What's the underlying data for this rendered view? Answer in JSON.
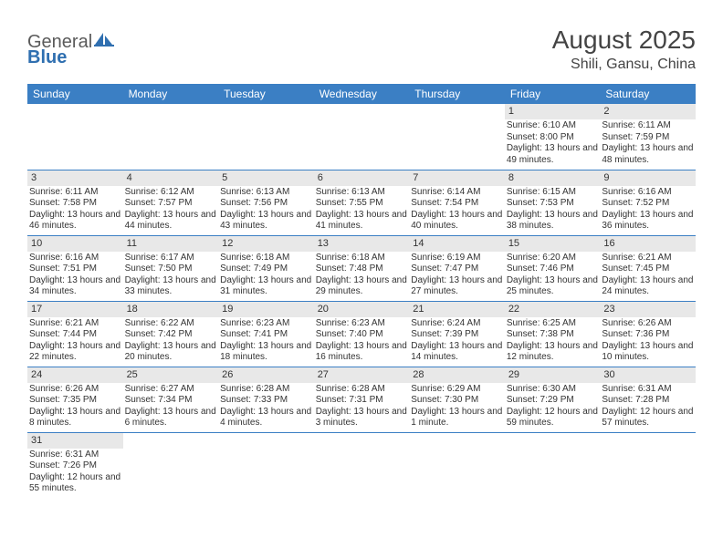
{
  "logo": {
    "text1": "General",
    "text2": "Blue"
  },
  "title": "August 2025",
  "location": "Shili, Gansu, China",
  "colors": {
    "header_bg": "#3b7fc4",
    "header_text": "#ffffff",
    "daynum_bg": "#e8e8e8",
    "cell_border": "#3b7fc4",
    "body_text": "#333333",
    "logo_gray": "#5a5a5a",
    "logo_blue": "#2f6fb0"
  },
  "weekdays": [
    "Sunday",
    "Monday",
    "Tuesday",
    "Wednesday",
    "Thursday",
    "Friday",
    "Saturday"
  ],
  "weeks": [
    [
      null,
      null,
      null,
      null,
      null,
      {
        "d": "1",
        "sr": "6:10 AM",
        "ss": "8:00 PM",
        "dl": "13 hours and 49 minutes."
      },
      {
        "d": "2",
        "sr": "6:11 AM",
        "ss": "7:59 PM",
        "dl": "13 hours and 48 minutes."
      }
    ],
    [
      {
        "d": "3",
        "sr": "6:11 AM",
        "ss": "7:58 PM",
        "dl": "13 hours and 46 minutes."
      },
      {
        "d": "4",
        "sr": "6:12 AM",
        "ss": "7:57 PM",
        "dl": "13 hours and 44 minutes."
      },
      {
        "d": "5",
        "sr": "6:13 AM",
        "ss": "7:56 PM",
        "dl": "13 hours and 43 minutes."
      },
      {
        "d": "6",
        "sr": "6:13 AM",
        "ss": "7:55 PM",
        "dl": "13 hours and 41 minutes."
      },
      {
        "d": "7",
        "sr": "6:14 AM",
        "ss": "7:54 PM",
        "dl": "13 hours and 40 minutes."
      },
      {
        "d": "8",
        "sr": "6:15 AM",
        "ss": "7:53 PM",
        "dl": "13 hours and 38 minutes."
      },
      {
        "d": "9",
        "sr": "6:16 AM",
        "ss": "7:52 PM",
        "dl": "13 hours and 36 minutes."
      }
    ],
    [
      {
        "d": "10",
        "sr": "6:16 AM",
        "ss": "7:51 PM",
        "dl": "13 hours and 34 minutes."
      },
      {
        "d": "11",
        "sr": "6:17 AM",
        "ss": "7:50 PM",
        "dl": "13 hours and 33 minutes."
      },
      {
        "d": "12",
        "sr": "6:18 AM",
        "ss": "7:49 PM",
        "dl": "13 hours and 31 minutes."
      },
      {
        "d": "13",
        "sr": "6:18 AM",
        "ss": "7:48 PM",
        "dl": "13 hours and 29 minutes."
      },
      {
        "d": "14",
        "sr": "6:19 AM",
        "ss": "7:47 PM",
        "dl": "13 hours and 27 minutes."
      },
      {
        "d": "15",
        "sr": "6:20 AM",
        "ss": "7:46 PM",
        "dl": "13 hours and 25 minutes."
      },
      {
        "d": "16",
        "sr": "6:21 AM",
        "ss": "7:45 PM",
        "dl": "13 hours and 24 minutes."
      }
    ],
    [
      {
        "d": "17",
        "sr": "6:21 AM",
        "ss": "7:44 PM",
        "dl": "13 hours and 22 minutes."
      },
      {
        "d": "18",
        "sr": "6:22 AM",
        "ss": "7:42 PM",
        "dl": "13 hours and 20 minutes."
      },
      {
        "d": "19",
        "sr": "6:23 AM",
        "ss": "7:41 PM",
        "dl": "13 hours and 18 minutes."
      },
      {
        "d": "20",
        "sr": "6:23 AM",
        "ss": "7:40 PM",
        "dl": "13 hours and 16 minutes."
      },
      {
        "d": "21",
        "sr": "6:24 AM",
        "ss": "7:39 PM",
        "dl": "13 hours and 14 minutes."
      },
      {
        "d": "22",
        "sr": "6:25 AM",
        "ss": "7:38 PM",
        "dl": "13 hours and 12 minutes."
      },
      {
        "d": "23",
        "sr": "6:26 AM",
        "ss": "7:36 PM",
        "dl": "13 hours and 10 minutes."
      }
    ],
    [
      {
        "d": "24",
        "sr": "6:26 AM",
        "ss": "7:35 PM",
        "dl": "13 hours and 8 minutes."
      },
      {
        "d": "25",
        "sr": "6:27 AM",
        "ss": "7:34 PM",
        "dl": "13 hours and 6 minutes."
      },
      {
        "d": "26",
        "sr": "6:28 AM",
        "ss": "7:33 PM",
        "dl": "13 hours and 4 minutes."
      },
      {
        "d": "27",
        "sr": "6:28 AM",
        "ss": "7:31 PM",
        "dl": "13 hours and 3 minutes."
      },
      {
        "d": "28",
        "sr": "6:29 AM",
        "ss": "7:30 PM",
        "dl": "13 hours and 1 minute."
      },
      {
        "d": "29",
        "sr": "6:30 AM",
        "ss": "7:29 PM",
        "dl": "12 hours and 59 minutes."
      },
      {
        "d": "30",
        "sr": "6:31 AM",
        "ss": "7:28 PM",
        "dl": "12 hours and 57 minutes."
      }
    ],
    [
      {
        "d": "31",
        "sr": "6:31 AM",
        "ss": "7:26 PM",
        "dl": "12 hours and 55 minutes."
      },
      null,
      null,
      null,
      null,
      null,
      null
    ]
  ],
  "labels": {
    "sunrise": "Sunrise:",
    "sunset": "Sunset:",
    "daylight": "Daylight:"
  }
}
